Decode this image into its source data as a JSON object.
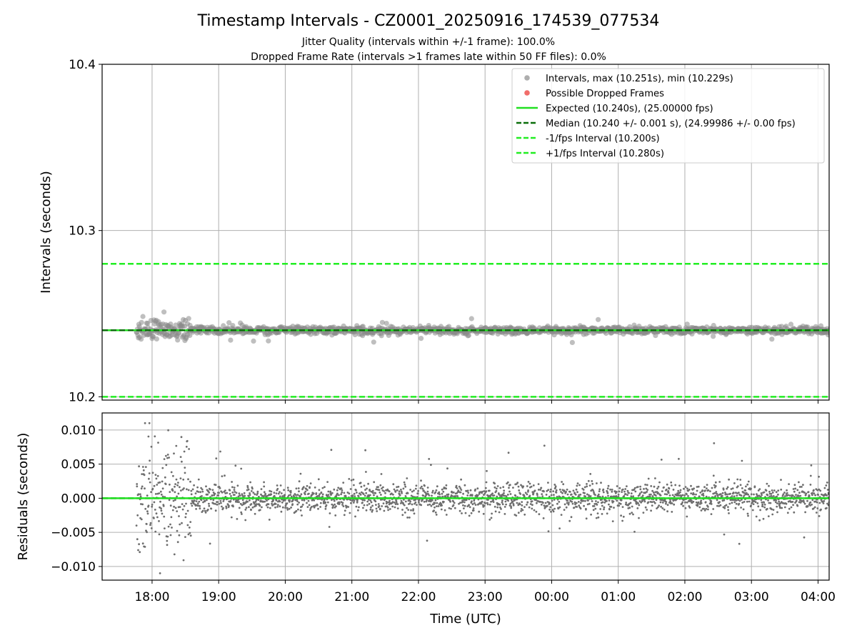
{
  "figure": {
    "title": "Timestamp Intervals - CZ0001_20250916_174539_077534",
    "subtitle1": "Jitter Quality (intervals within +/-1 frame): 100.0%",
    "subtitle2": "Dropped Frame Rate (intervals >1 frames late within 50 FF files): 0.0%"
  },
  "colors": {
    "points": "#808080",
    "dropped": "#ef5350",
    "expected": "#21e021",
    "median": "#0a6e0a",
    "fps_bounds": "#22ee22",
    "grid": "#b0b0b0"
  },
  "chart_data": [
    {
      "id": "intervals",
      "type": "scatter",
      "ylabel": "Intervals (seconds)",
      "ylim": [
        10.198,
        10.4
      ],
      "yticks": [
        10.2,
        10.3,
        10.4
      ],
      "yticklabels": [
        "10.2",
        "10.3",
        "10.4"
      ],
      "xlim": [
        "17:15",
        "04:10"
      ],
      "grid": true,
      "legend_placement": "top-right",
      "legend": [
        {
          "label": "Intervals, max (10.251s), min (10.229s)",
          "kind": "point",
          "color": "#a0a0a0"
        },
        {
          "label": "Possible Dropped Frames",
          "kind": "point",
          "color": "#ef5350"
        },
        {
          "label": "Expected (10.240s), (25.00000 fps)",
          "kind": "solid",
          "color": "#21e021"
        },
        {
          "label": "Median (10.240 +/- 0.001 s), (24.99986 +/- 0.00 fps)",
          "kind": "dashed",
          "color": "#0a6e0a"
        },
        {
          "label": "-1/fps Interval (10.200s)",
          "kind": "dashed",
          "color": "#22ee22"
        },
        {
          "label": "+1/fps Interval (10.280s)",
          "kind": "dashed",
          "color": "#22ee22"
        }
      ],
      "series": [
        {
          "name": "Expected",
          "value": 10.24
        },
        {
          "name": "Median",
          "value": 10.24
        },
        {
          "name": "-1/fps Interval",
          "value": 10.2
        },
        {
          "name": "+1/fps Interval",
          "value": 10.28
        }
      ],
      "points_summary": {
        "start": "17:46",
        "end": "04:10",
        "max": 10.251,
        "min": 10.229,
        "center": 10.24
      }
    },
    {
      "id": "residuals",
      "type": "scatter",
      "ylabel": "Residuals (seconds)",
      "xlabel": "Time (UTC)",
      "ylim": [
        -0.012,
        0.0125
      ],
      "yticks": [
        -0.01,
        -0.005,
        0.0,
        0.005,
        0.01
      ],
      "yticklabels": [
        "−0.010",
        "−0.005",
        "0.000",
        "0.005",
        "0.010"
      ],
      "xticks": [
        "18:00",
        "19:00",
        "20:00",
        "21:00",
        "22:00",
        "23:00",
        "00:00",
        "01:00",
        "02:00",
        "03:00",
        "04:00"
      ],
      "xlim": [
        "17:15",
        "04:10"
      ],
      "grid": true,
      "series": [
        {
          "name": "Median",
          "value": 0.0
        },
        {
          "name": "Expected",
          "value": 0.0
        }
      ],
      "points_summary": {
        "start": "17:46",
        "end": "04:10",
        "max": 0.011,
        "min": -0.011,
        "center": 0.0
      }
    }
  ]
}
